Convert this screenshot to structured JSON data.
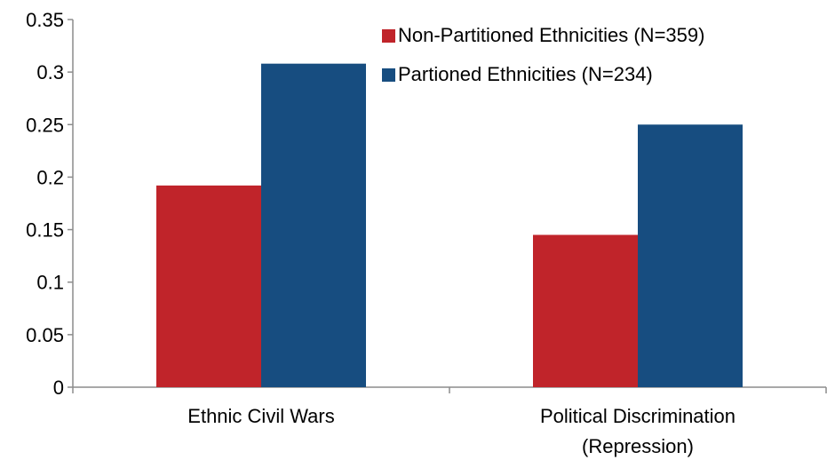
{
  "chart_data": {
    "type": "bar",
    "title": "",
    "xlabel": "",
    "ylabel": "",
    "categories": [
      [
        "Ethnic Civil Wars"
      ],
      [
        "Political Discrimination",
        "(Repression)"
      ]
    ],
    "series": [
      {
        "name": "Non-Partitioned Ethnicities (N=359)",
        "color": "#c0242a",
        "values": [
          0.192,
          0.145
        ]
      },
      {
        "name": "Partioned Ethnicities (N=234)",
        "color": "#174d80",
        "values": [
          0.308,
          0.25
        ]
      }
    ],
    "ylim": [
      0,
      0.35
    ],
    "yticks": [
      "0",
      "0.05",
      "0.1",
      "0.15",
      "0.2",
      "0.25",
      "0.3",
      "0.35"
    ],
    "grid": false,
    "legend_position": "top-right"
  }
}
